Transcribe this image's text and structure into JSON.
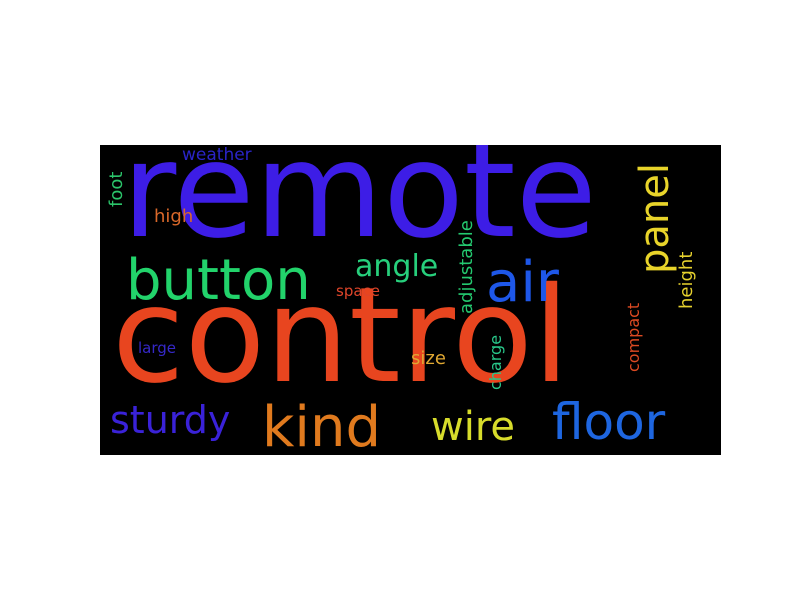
{
  "wordcloud": {
    "background": "#000000",
    "words": {
      "remote": {
        "text": "remote",
        "color": "#3d1de6",
        "orientation": "horizontal"
      },
      "control": {
        "text": "control",
        "color": "#e8451f",
        "orientation": "horizontal"
      },
      "button": {
        "text": "button",
        "color": "#22d36b",
        "orientation": "horizontal"
      },
      "air": {
        "text": "air",
        "color": "#1e57e8",
        "orientation": "horizontal"
      },
      "angle": {
        "text": "angle",
        "color": "#27cf7c",
        "orientation": "horizontal"
      },
      "kind": {
        "text": "kind",
        "color": "#e07a1e",
        "orientation": "horizontal"
      },
      "floor": {
        "text": "floor",
        "color": "#1e66e0",
        "orientation": "horizontal"
      },
      "sturdy": {
        "text": "sturdy",
        "color": "#3a22d8",
        "orientation": "horizontal"
      },
      "wire": {
        "text": "wire",
        "color": "#d7dc2b",
        "orientation": "horizontal"
      },
      "panel": {
        "text": "panel",
        "color": "#e8d42a",
        "orientation": "vertical"
      },
      "height": {
        "text": "height",
        "color": "#e6d12e",
        "orientation": "vertical"
      },
      "adjustable": {
        "text": "adjustable",
        "color": "#24c86f",
        "orientation": "vertical"
      },
      "weather": {
        "text": "weather",
        "color": "#2a24c8",
        "orientation": "horizontal"
      },
      "foot": {
        "text": "foot",
        "color": "#2bc46a",
        "orientation": "vertical"
      },
      "high": {
        "text": "high",
        "color": "#d9682a",
        "orientation": "horizontal"
      },
      "space": {
        "text": "space",
        "color": "#e0452a",
        "orientation": "horizontal"
      },
      "large": {
        "text": "large",
        "color": "#3528c9",
        "orientation": "horizontal"
      },
      "size": {
        "text": "size",
        "color": "#e0a832",
        "orientation": "horizontal"
      },
      "charge": {
        "text": "charge",
        "color": "#29c88a",
        "orientation": "vertical"
      },
      "compact": {
        "text": "compact",
        "color": "#dc4a22",
        "orientation": "vertical"
      }
    }
  }
}
